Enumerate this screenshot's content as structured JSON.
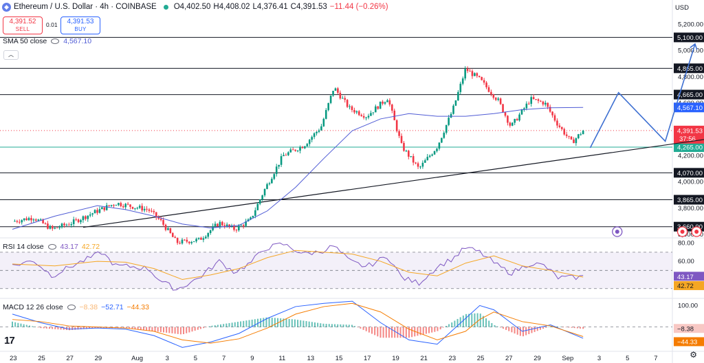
{
  "header": {
    "symbol": "Ethereum / U.S. Dollar · 4h · COINBASE",
    "open": "O4,402.50",
    "high": "H4,408.02",
    "low": "L4,376.41",
    "close": "C4,391.53",
    "change": "−11.44 (−0.26%)"
  },
  "trade": {
    "sell_price": "4,391.52",
    "sell_label": "SELL",
    "spread": "0.01",
    "buy_price": "4,391.53",
    "buy_label": "BUY"
  },
  "indicators": {
    "sma_label": "SMA 50 close",
    "sma_value": "4,567.10",
    "rsi_label": "RSI 14 close",
    "rsi_value": "43.17",
    "rsi_ma_value": "42.72",
    "macd_label": "MACD 12 26 close",
    "macd_hist": "−8.38",
    "macd_line": "−52.71",
    "macd_signal": "−44.33"
  },
  "axis": {
    "currency": "USD"
  },
  "colors": {
    "up": "#089981",
    "down": "#f23645",
    "sma": "#4f5bd5",
    "rsi": "#7e57c2",
    "rsi_ma": "#f5a623",
    "macd": "#2962ff",
    "signal": "#f57c00",
    "projection": "#3d6fd1"
  },
  "chart_data": {
    "type": "candlestick",
    "x_ticks": [
      "23",
      "25",
      "27",
      "29",
      "Aug",
      "3",
      "5",
      "7",
      "9",
      "11",
      "13",
      "15",
      "17",
      "19",
      "21",
      "23",
      "25",
      "27",
      "29",
      "Sep",
      "3",
      "5",
      "7"
    ],
    "price_ticks": [
      "5,200.00",
      "5,000.00",
      "4,800.00",
      "4,600.00",
      "4,400.00",
      "4,200.00",
      "4,000.00",
      "3,800.00",
      "3,600.00"
    ],
    "price_ylim": [
      3580,
      5280
    ],
    "horizontal_levels": [
      {
        "label": "5,100.00",
        "value": 5100
      },
      {
        "label": "4,865.00",
        "value": 4865
      },
      {
        "label": "4,665.00",
        "value": 4665
      },
      {
        "label": "4,070.00",
        "value": 4070
      },
      {
        "label": "3,865.00",
        "value": 3865
      },
      {
        "label": "3,660.00",
        "value": 3660
      }
    ],
    "support_level": {
      "label": "4,265.00",
      "value": 4265
    },
    "current_price": {
      "label": "4,391.53",
      "value": 4391.53,
      "countdown": "37:56"
    },
    "sma_tag": {
      "label": "4,567.10",
      "value": 4567.1
    },
    "trendline": [
      {
        "day": 5,
        "price": 3655
      },
      {
        "day": 55.2,
        "price": 4420
      }
    ],
    "projection": [
      {
        "day": 40.8,
        "price": 4260
      },
      {
        "day": 42.8,
        "price": 4680
      },
      {
        "day": 46.1,
        "price": 4310
      },
      {
        "day": 48.2,
        "price": 5050
      }
    ],
    "price_path": [
      [
        0,
        3700
      ],
      [
        1.5,
        3730
      ],
      [
        2.8,
        3640
      ],
      [
        4.2,
        3690
      ],
      [
        5.8,
        3770
      ],
      [
        7.3,
        3840
      ],
      [
        8.6,
        3810
      ],
      [
        9.6,
        3790
      ],
      [
        10.5,
        3700
      ],
      [
        11.6,
        3540
      ],
      [
        13.2,
        3560
      ],
      [
        14.6,
        3690
      ],
      [
        15.7,
        3640
      ],
      [
        16.8,
        3710
      ],
      [
        17.8,
        3940
      ],
      [
        19.1,
        4200
      ],
      [
        20.6,
        4280
      ],
      [
        21.8,
        4420
      ],
      [
        22.7,
        4720
      ],
      [
        23.8,
        4560
      ],
      [
        25,
        4500
      ],
      [
        26.5,
        4640
      ],
      [
        27.5,
        4270
      ],
      [
        28.7,
        4100
      ],
      [
        30,
        4270
      ],
      [
        31.1,
        4550
      ],
      [
        32,
        4860
      ],
      [
        33,
        4780
      ],
      [
        34.3,
        4620
      ],
      [
        35.2,
        4420
      ],
      [
        36.6,
        4630
      ],
      [
        37.6,
        4600
      ],
      [
        38.5,
        4440
      ],
      [
        39.5,
        4300
      ],
      [
        40.3,
        4391
      ]
    ],
    "sma_path": [
      [
        0,
        3640
      ],
      [
        3,
        3740
      ],
      [
        6,
        3820
      ],
      [
        8,
        3790
      ],
      [
        10,
        3740
      ],
      [
        12,
        3680
      ],
      [
        14,
        3650
      ],
      [
        16,
        3670
      ],
      [
        18,
        3780
      ],
      [
        20,
        3960
      ],
      [
        22,
        4180
      ],
      [
        24,
        4390
      ],
      [
        26,
        4480
      ],
      [
        28,
        4520
      ],
      [
        30,
        4500
      ],
      [
        32,
        4500
      ],
      [
        34,
        4520
      ],
      [
        36,
        4550
      ],
      [
        38,
        4565
      ],
      [
        40.3,
        4567
      ]
    ],
    "rsi": {
      "ticks": [
        "80.00",
        "60.00"
      ],
      "ylim": [
        20,
        85
      ],
      "band": [
        30,
        70
      ],
      "mid": 50,
      "rsi_path": [
        [
          0,
          55
        ],
        [
          1.5,
          61
        ],
        [
          2.8,
          44
        ],
        [
          4.2,
          55
        ],
        [
          5.8,
          66
        ],
        [
          6.3,
          70
        ],
        [
          7.3,
          55
        ],
        [
          8.6,
          54
        ],
        [
          9.6,
          52
        ],
        [
          10.5,
          38
        ],
        [
          11.6,
          29
        ],
        [
          13.2,
          42
        ],
        [
          14.6,
          60
        ],
        [
          15.7,
          48
        ],
        [
          16.8,
          58
        ],
        [
          17.8,
          74
        ],
        [
          19.1,
          79
        ],
        [
          20.6,
          68
        ],
        [
          21.8,
          71
        ],
        [
          22.7,
          77
        ],
        [
          23.8,
          60
        ],
        [
          25,
          54
        ],
        [
          26.5,
          66
        ],
        [
          27.5,
          42
        ],
        [
          28.7,
          36
        ],
        [
          30,
          54
        ],
        [
          31.1,
          63
        ],
        [
          32,
          75
        ],
        [
          33,
          70
        ],
        [
          34.3,
          55
        ],
        [
          35.2,
          47
        ],
        [
          36.6,
          58
        ],
        [
          37.6,
          55
        ],
        [
          38.5,
          42
        ],
        [
          39.5,
          42
        ],
        [
          40.3,
          43
        ]
      ],
      "ma_path": [
        [
          0,
          57
        ],
        [
          3,
          55
        ],
        [
          6,
          60
        ],
        [
          8,
          59
        ],
        [
          10,
          52
        ],
        [
          12,
          40
        ],
        [
          14,
          45
        ],
        [
          16,
          52
        ],
        [
          18,
          64
        ],
        [
          20,
          72
        ],
        [
          22,
          70
        ],
        [
          24,
          68
        ],
        [
          26,
          60
        ],
        [
          28,
          48
        ],
        [
          30,
          44
        ],
        [
          32,
          58
        ],
        [
          34,
          66
        ],
        [
          36,
          55
        ],
        [
          38,
          50
        ],
        [
          40.3,
          42.7
        ]
      ]
    },
    "macd": {
      "ticks": [
        "100.00"
      ],
      "ylim": [
        -110,
        130
      ],
      "macd_path": [
        [
          0,
          60
        ],
        [
          2,
          20
        ],
        [
          4,
          -10
        ],
        [
          6,
          -5
        ],
        [
          8,
          -10
        ],
        [
          10,
          -40
        ],
        [
          12,
          -95
        ],
        [
          14,
          -70
        ],
        [
          16,
          -30
        ],
        [
          18,
          40
        ],
        [
          20,
          95
        ],
        [
          22,
          110
        ],
        [
          24,
          120
        ],
        [
          26,
          20
        ],
        [
          28,
          -60
        ],
        [
          30,
          -80
        ],
        [
          32,
          40
        ],
        [
          33,
          100
        ],
        [
          34,
          80
        ],
        [
          36,
          -20
        ],
        [
          38,
          10
        ],
        [
          40.3,
          -52.7
        ]
      ],
      "signal_path": [
        [
          0,
          35
        ],
        [
          2,
          25
        ],
        [
          4,
          5
        ],
        [
          6,
          0
        ],
        [
          8,
          -5
        ],
        [
          10,
          -20
        ],
        [
          12,
          -60
        ],
        [
          14,
          -75
        ],
        [
          16,
          -55
        ],
        [
          18,
          -5
        ],
        [
          20,
          60
        ],
        [
          22,
          95
        ],
        [
          24,
          110
        ],
        [
          26,
          70
        ],
        [
          28,
          -10
        ],
        [
          30,
          -60
        ],
        [
          32,
          -20
        ],
        [
          33,
          35
        ],
        [
          34,
          70
        ],
        [
          36,
          25
        ],
        [
          38,
          5
        ],
        [
          40.3,
          -44.3
        ]
      ]
    }
  }
}
